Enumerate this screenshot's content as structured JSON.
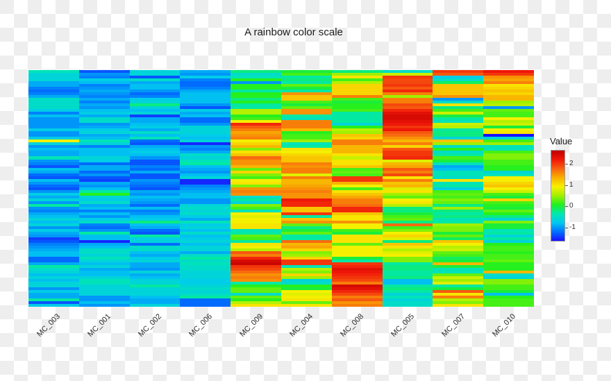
{
  "chart_data": {
    "type": "heatmap",
    "title": "A rainbow color scale",
    "xlabel": "",
    "ylabel": "",
    "columns": [
      "MC_003",
      "MC_001",
      "MC_002",
      "MC_006",
      "MC_009",
      "MC_004",
      "MC_008",
      "MC_005",
      "MC_007",
      "MC_010"
    ],
    "n_rows": 85,
    "legend": {
      "title": "Value",
      "position": "right",
      "range": [
        -1.6,
        2.6
      ],
      "ticks": [
        -1,
        0,
        1,
        2
      ],
      "tick_labels": [
        "-1",
        "0",
        "1",
        "2"
      ],
      "colors": [
        "#1a10ff",
        "#0070ff",
        "#00c8f0",
        "#00e8b0",
        "#20f020",
        "#a0f000",
        "#f8f000",
        "#f8b000",
        "#f86010",
        "#f01808",
        "#c00000"
      ]
    },
    "values": [
      [
        -0.4,
        -0.6,
        -0.6,
        -0.6,
        -0.9,
        -0.9,
        -1.1,
        -1.2,
        -1.1,
        -0.9,
        -0.5,
        -0.5,
        -0.5,
        -0.5,
        -0.7,
        -1.1,
        -0.8,
        -1.0,
        -1.0,
        -1.0,
        -1.0,
        -0.7,
        -1.0,
        -1.0,
        -0.7,
        0.9,
        -0.6,
        -1.0,
        -0.8,
        -0.9,
        -0.9,
        -0.4,
        -1.0,
        -1.1,
        -1.3,
        -0.8,
        -0.9,
        -1.2,
        -1.3,
        -0.8,
        -1.0,
        -1.2,
        -1.3,
        -1.0,
        -0.7,
        -0.9,
        -0.6,
        -1.0,
        -0.3,
        -1.0,
        -1.1,
        -0.9,
        -0.8,
        -0.6,
        -0.8,
        -0.6,
        -1.0,
        -0.7,
        -0.9,
        -1.0,
        -1.4,
        -1.3,
        -1.1,
        -1.0,
        -0.9,
        -0.8,
        -0.8,
        -1.2,
        -1.2,
        -0.9,
        -0.3,
        -0.5,
        -0.6,
        -0.8,
        -0.6,
        -0.8,
        -0.6,
        -0.6,
        -1.0,
        -0.7,
        -0.9,
        -0.9,
        -0.3,
        -1.3,
        -0.7
      ],
      [
        -1.3,
        -1.0,
        -1.1,
        -0.7,
        -0.8,
        -1.1,
        -1.0,
        -0.9,
        -1.0,
        -1.1,
        -0.9,
        -1.1,
        -0.9,
        -1.0,
        -0.8,
        -0.7,
        -0.9,
        -0.5,
        -0.5,
        -1.0,
        -0.9,
        -0.7,
        -0.6,
        -0.9,
        -0.8,
        -0.4,
        -0.6,
        -1.1,
        -0.8,
        -0.8,
        -0.8,
        -0.6,
        -0.7,
        -1.2,
        -0.9,
        -0.9,
        -1.2,
        -1.0,
        -1.3,
        -1.4,
        -0.9,
        -1.0,
        -0.8,
        -0.3,
        0.1,
        -0.6,
        -0.7,
        -0.5,
        -0.9,
        -0.8,
        -1.1,
        -0.8,
        -1.0,
        -0.7,
        -0.5,
        -1.1,
        -1.2,
        -1.0,
        -0.3,
        -0.8,
        -0.8,
        -1.5,
        -0.9,
        -0.8,
        -0.5,
        -0.5,
        -0.6,
        -0.4,
        -0.6,
        -0.8,
        -0.6,
        -0.9,
        -0.8,
        -0.8,
        -0.6,
        -0.4,
        -0.4,
        -0.6,
        -0.6,
        -0.6,
        -0.6,
        -1.0,
        -1.0,
        -0.8,
        -1.0
      ],
      [
        -0.6,
        -0.6,
        -1.3,
        -0.5,
        -0.9,
        -0.8,
        -0.8,
        -1.0,
        -1.2,
        -1.1,
        -0.7,
        -0.6,
        -0.2,
        -0.6,
        -0.8,
        -0.6,
        -1.4,
        -0.9,
        -0.9,
        -0.8,
        -0.7,
        -0.9,
        -0.5,
        -0.8,
        -0.4,
        -1.2,
        -1.3,
        -0.9,
        -0.8,
        -0.7,
        -0.8,
        -1.0,
        -1.3,
        -1.3,
        -1.1,
        -1.2,
        -0.9,
        -1.3,
        -1.3,
        -1.0,
        -1.1,
        -1.2,
        -1.3,
        -0.9,
        -1.0,
        -0.8,
        -0.9,
        -1.0,
        -1.2,
        -0.8,
        -1.1,
        -1.0,
        -0.8,
        -0.7,
        -0.2,
        -0.8,
        -0.9,
        -1.2,
        -1.3,
        -0.3,
        -0.7,
        -0.6,
        -1.2,
        -0.5,
        -0.5,
        -0.8,
        -0.9,
        -0.7,
        -0.6,
        -0.9,
        -0.9,
        -1.0,
        -0.6,
        -0.9,
        -0.8,
        -0.6,
        -0.6,
        -0.3,
        -0.6,
        -0.6,
        -0.6,
        -0.8,
        -0.9,
        -0.9,
        -0.6
      ],
      [
        -0.9,
        -1.0,
        -0.7,
        -1.1,
        -1.2,
        -1.2,
        -1.1,
        -0.9,
        -0.8,
        -0.8,
        -0.8,
        -0.8,
        -1.0,
        -1.3,
        -0.7,
        -0.9,
        -0.8,
        -1.2,
        -1.2,
        -1.0,
        -0.6,
        -0.6,
        -0.6,
        -0.7,
        -0.8,
        -0.6,
        -1.5,
        -1.0,
        -1.1,
        -0.9,
        -0.5,
        -0.6,
        -0.4,
        -0.3,
        -0.8,
        -0.9,
        -1.0,
        -0.8,
        -0.6,
        -1.5,
        -1.5,
        -1.1,
        -1.0,
        -0.9,
        -0.8,
        -0.8,
        -1.0,
        -1.0,
        -0.6,
        -0.5,
        -0.6,
        -0.5,
        -0.7,
        -0.9,
        -0.4,
        -0.7,
        -0.6,
        -0.8,
        -0.5,
        -0.8,
        -0.7,
        -0.6,
        -0.8,
        -0.6,
        -0.6,
        -0.9,
        -0.5,
        -0.3,
        -0.5,
        -0.4,
        -0.5,
        -0.5,
        -0.6,
        -0.6,
        -0.6,
        -0.7,
        -0.7,
        -0.6,
        -0.5,
        -0.6,
        -0.5,
        -0.3,
        -1.2,
        -1.2,
        -1.2
      ],
      [
        -0.2,
        -0.5,
        -0.4,
        0.1,
        -1.0,
        0.1,
        0.1,
        -0.3,
        0.1,
        0.1,
        -0.2,
        0.1,
        -0.3,
        -0.3,
        0.6,
        0.6,
        0.1,
        0.2,
        0.9,
        2.1,
        1.8,
        1.6,
        1.4,
        1.5,
        1.6,
        0.9,
        1.1,
        1.3,
        0.4,
        1.0,
        1.2,
        1.7,
        1.5,
        1.5,
        1.3,
        0.3,
        1.1,
        0.4,
        0.2,
        0.9,
        1.0,
        0.4,
        1.5,
        1.6,
        1.5,
        -0.5,
        -0.3,
        -0.6,
        0.4,
        0.2,
        -0.4,
        0.9,
        0.8,
        0.9,
        0.9,
        1.0,
        1.0,
        -0.4,
        -0.3,
        0.3,
        0.2,
        -0.3,
        1.0,
        0.9,
        0.6,
        1.8,
        1.6,
        2.1,
        2.4,
        2.5,
        2.0,
        1.9,
        1.7,
        1.5,
        1.6,
        1.5,
        -0.3,
        0.1,
        0.3,
        0.3,
        -0.5,
        0.3,
        0.1,
        0.6,
        1.0
      ],
      [
        0.0,
        0.2,
        -0.3,
        -0.2,
        -0.3,
        0.3,
        0.0,
        -0.3,
        1.5,
        1.2,
        1.2,
        0.2,
        0.0,
        0.3,
        1.5,
        1.5,
        -0.3,
        -0.4,
        1.6,
        1.6,
        1.6,
        1.3,
        0.1,
        0.2,
        0.2,
        0.5,
        -0.4,
        -0.3,
        1.0,
        0.9,
        1.1,
        1.2,
        1.2,
        1.6,
        1.5,
        1.6,
        1.6,
        0.8,
        1.6,
        1.3,
        1.3,
        1.4,
        1.5,
        1.6,
        1.5,
        1.5,
        2.2,
        2.1,
        2.1,
        1.2,
        1.2,
        2.0,
        -0.3,
        1.2,
        1.5,
        0.3,
        -0.2,
        0.0,
        0.3,
        -0.3,
        -0.3,
        1.7,
        1.3,
        1.4,
        1.1,
        0.4,
        0.5,
        1.1,
        2.0,
        2.0,
        -0.4,
        0.6,
        0.4,
        1.1,
        0.5,
        -0.6,
        -0.5,
        0.1,
        0.0,
        0.9,
        0.8,
        0.9,
        1.0,
        0.3,
        1.0
      ],
      [
        -0.2,
        0.5,
        1.0,
        0.2,
        0.6,
        1.1,
        1.1,
        1.1,
        1.1,
        1.6,
        0.2,
        0.0,
        0.1,
        0.1,
        0.2,
        -0.3,
        -0.3,
        -0.3,
        -0.3,
        -0.6,
        0.1,
        0.6,
        0.5,
        1.2,
        1.1,
        1.6,
        1.6,
        1.3,
        1.3,
        1.3,
        1.0,
        0.7,
        1.0,
        1.0,
        1.2,
        0.2,
        0.3,
        0.2,
        2.0,
        2.0,
        1.3,
        0.9,
        0.2,
        1.0,
        1.2,
        1.4,
        1.6,
        1.6,
        1.7,
        2.1,
        2.1,
        1.2,
        1.0,
        1.0,
        1.5,
        0.9,
        0.9,
        0.2,
        0.0,
        1.0,
        1.0,
        1.0,
        0.3,
        0.9,
        0.9,
        0.9,
        0.9,
        0.0,
        -0.3,
        2.0,
        2.1,
        2.3,
        2.2,
        2.1,
        2.0,
        1.9,
        1.6,
        2.4,
        2.3,
        2.1,
        1.9,
        1.6,
        1.8,
        1.5,
        1.6
      ],
      [
        -0.5,
        0.7,
        2.0,
        1.9,
        1.9,
        2.0,
        1.8,
        2.1,
        1.6,
        0.5,
        1.6,
        1.6,
        1.9,
        1.8,
        2.1,
        2.3,
        2.4,
        2.4,
        2.3,
        2.2,
        2.0,
        2.2,
        1.8,
        1.7,
        1.5,
        1.3,
        1.6,
        1.1,
        1.8,
        2.0,
        2.0,
        2.1,
        0.8,
        1.3,
        1.4,
        1.8,
        1.6,
        1.9,
        1.0,
        1.6,
        1.2,
        1.3,
        0.8,
        1.0,
        0.5,
        0.3,
        0.9,
        1.0,
        0.6,
        -0.2,
        -0.2,
        0.0,
        0.2,
        0.3,
        -0.2,
        1.7,
        0.2,
        0.4,
        0.9,
        1.1,
        0.8,
        -0.2,
        1.2,
        1.0,
        0.6,
        0.8,
        0.9,
        0.4,
        0.4,
        -0.3,
        -0.2,
        -0.2,
        -0.3,
        -0.3,
        -0.2,
        -0.8,
        -0.8,
        -0.3,
        -0.2,
        -0.3,
        -0.6,
        -0.4,
        -0.6,
        -0.5,
        -0.5
      ],
      [
        2.0,
        1.8,
        -0.7,
        -0.5,
        -0.1,
        1.2,
        1.2,
        1.2,
        1.2,
        1.5,
        -1.0,
        -0.5,
        1.0,
        -0.2,
        0.2,
        0.7,
        0.0,
        -0.3,
        -0.4,
        0.7,
        0.6,
        -0.3,
        -0.2,
        -0.2,
        -0.6,
        1.2,
        0.5,
        -0.5,
        0.1,
        -0.5,
        -0.3,
        0.2,
        0.0,
        -0.4,
        -0.9,
        -0.8,
        -0.4,
        -0.4,
        -0.5,
        1.0,
        -0.4,
        -0.3,
        -0.7,
        0.2,
        0.3,
        0.2,
        0.4,
        0.3,
        -0.2,
        0.5,
        -0.2,
        -0.3,
        -0.2,
        -0.4,
        -0.3,
        0.5,
        0.4,
        0.4,
        0.0,
        0.3,
        -0.1,
        1.2,
        0.9,
        0.6,
        0.7,
        0.3,
        0.2,
        -0.1,
        0.0,
        1.3,
        0.0,
        -0.4,
        -0.4,
        0.3,
        0.7,
        0.5,
        0.8,
        -0.3,
        0.0,
        1.8,
        1.0,
        1.6,
        0.6,
        0.4,
        1.0
      ],
      [
        2.2,
        2.0,
        1.5,
        1.4,
        1.6,
        1.0,
        1.1,
        1.2,
        1.1,
        1.3,
        1.3,
        0.5,
        0.6,
        -1.0,
        0.3,
        0.2,
        0.2,
        0.9,
        0.6,
        0.7,
        0.0,
        0.9,
        1.0,
        -1.6,
        -0.6,
        0.2,
        0.5,
        -0.4,
        -0.4,
        0.2,
        0.4,
        0.4,
        0.2,
        0.2,
        0.1,
        0.1,
        -0.6,
        -0.4,
        0.9,
        0.9,
        1.1,
        1.2,
        0.9,
        0.7,
        0.2,
        0.0,
        1.1,
        0.2,
        0.1,
        0.0,
        0.3,
        0.1,
        -0.2,
        -0.6,
        0.4,
        0.0,
        0.0,
        -0.4,
        -0.3,
        -0.6,
        -0.3,
        -0.6,
        0.1,
        0.2,
        0.2,
        0.1,
        0.2,
        0.2,
        0.3,
        0.1,
        0.1,
        0.1,
        1.3,
        -0.5,
        -0.6,
        0.4,
        0.4,
        0.2,
        0.2,
        0.0,
        -0.8,
        0.1,
        0.2,
        0.2,
        0.2
      ]
    ]
  }
}
